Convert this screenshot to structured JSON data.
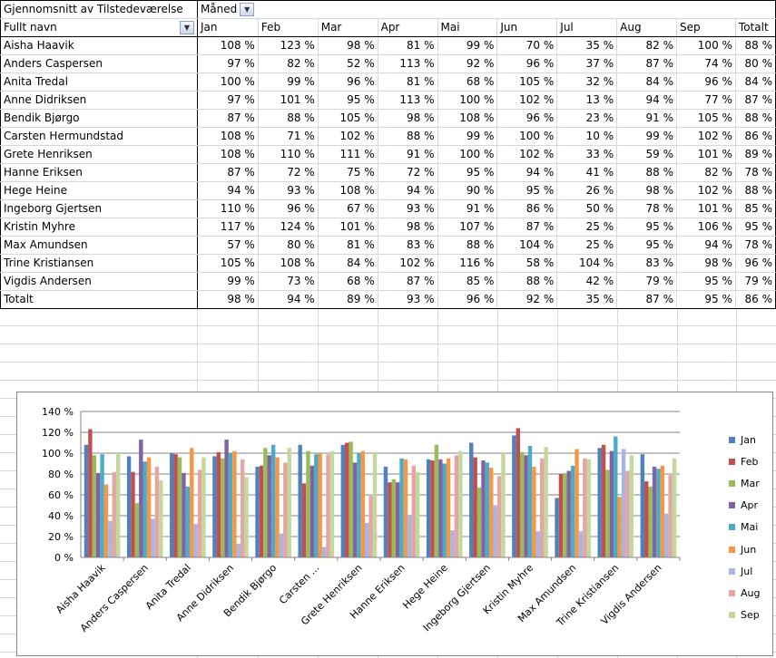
{
  "pivot": {
    "value_label": "Gjennomsnitt av Tilstedeværelse",
    "column_field": "Måned",
    "row_field": "Fullt navn",
    "months": [
      "Jan",
      "Feb",
      "Mar",
      "Apr",
      "Mai",
      "Jun",
      "Jul",
      "Aug",
      "Sep"
    ],
    "total_label": "Totalt",
    "rows": [
      {
        "name": "Aisha Haavik",
        "values": [
          "108 %",
          "123 %",
          "98 %",
          "81 %",
          "99 %",
          "70 %",
          "35 %",
          "82 %",
          "100 %"
        ],
        "total": "88 %"
      },
      {
        "name": "Anders Caspersen",
        "values": [
          "97 %",
          "82 %",
          "52 %",
          "113 %",
          "92 %",
          "96 %",
          "37 %",
          "87 %",
          "74 %"
        ],
        "total": "80 %"
      },
      {
        "name": "Anita Tredal",
        "values": [
          "100 %",
          "99 %",
          "96 %",
          "81 %",
          "68 %",
          "105 %",
          "32 %",
          "84 %",
          "96 %"
        ],
        "total": "84 %"
      },
      {
        "name": "Anne Didriksen",
        "values": [
          "97 %",
          "101 %",
          "95 %",
          "113 %",
          "100 %",
          "102 %",
          "13 %",
          "94 %",
          "77 %"
        ],
        "total": "87 %"
      },
      {
        "name": "Bendik Bjørgo",
        "values": [
          "87 %",
          "88 %",
          "105 %",
          "98 %",
          "108 %",
          "96 %",
          "23 %",
          "91 %",
          "105 %"
        ],
        "total": "88 %"
      },
      {
        "name": "Carsten Hermundstad",
        "values": [
          "108 %",
          "71 %",
          "102 %",
          "88 %",
          "99 %",
          "100 %",
          "10 %",
          "99 %",
          "102 %"
        ],
        "total": "86 %"
      },
      {
        "name": "Grete Henriksen",
        "values": [
          "108 %",
          "110 %",
          "111 %",
          "91 %",
          "100 %",
          "102 %",
          "33 %",
          "59 %",
          "101 %"
        ],
        "total": "89 %"
      },
      {
        "name": "Hanne Eriksen",
        "values": [
          "87 %",
          "72 %",
          "75 %",
          "72 %",
          "95 %",
          "94 %",
          "41 %",
          "88 %",
          "82 %"
        ],
        "total": "78 %"
      },
      {
        "name": "Hege Heine",
        "values": [
          "94 %",
          "93 %",
          "108 %",
          "94 %",
          "90 %",
          "95 %",
          "26 %",
          "98 %",
          "102 %"
        ],
        "total": "88 %"
      },
      {
        "name": "Ingeborg Gjertsen",
        "values": [
          "110 %",
          "96 %",
          "67 %",
          "93 %",
          "91 %",
          "86 %",
          "50 %",
          "78 %",
          "101 %"
        ],
        "total": "85 %"
      },
      {
        "name": "Kristin Myhre",
        "values": [
          "117 %",
          "124 %",
          "101 %",
          "98 %",
          "107 %",
          "87 %",
          "25 %",
          "95 %",
          "106 %"
        ],
        "total": "95 %"
      },
      {
        "name": "Max Amundsen",
        "values": [
          "57 %",
          "80 %",
          "81 %",
          "83 %",
          "88 %",
          "104 %",
          "25 %",
          "95 %",
          "94 %"
        ],
        "total": "78 %"
      },
      {
        "name": "Trine Kristiansen",
        "values": [
          "105 %",
          "108 %",
          "84 %",
          "102 %",
          "116 %",
          "58 %",
          "104 %",
          "83 %",
          "98 %"
        ],
        "total": "96 %"
      },
      {
        "name": "Vigdis Andersen",
        "values": [
          "99 %",
          "73 %",
          "68 %",
          "87 %",
          "85 %",
          "88 %",
          "42 %",
          "79 %",
          "95 %"
        ],
        "total": "79 %"
      }
    ],
    "grand_total": {
      "name": "Totalt",
      "values": [
        "98 %",
        "94 %",
        "89 %",
        "93 %",
        "96 %",
        "92 %",
        "35 %",
        "87 %",
        "95 %"
      ],
      "total": "86 %"
    }
  },
  "chart_data": {
    "type": "bar",
    "categories": [
      "Aisha Haavik",
      "Anders Caspersen",
      "Anita Tredal",
      "Anne Didriksen",
      "Bendik Bjørgo",
      "Carsten ...",
      "Grete Henriksen",
      "Hanne Eriksen",
      "Hege Heine",
      "Ingeborg Gjertsen",
      "Kristin Myhre",
      "Max Amundsen",
      "Trine Kristiansen",
      "Vigdis Andersen"
    ],
    "series": [
      {
        "name": "Jan",
        "color": "#4F81BD",
        "values": [
          108,
          97,
          100,
          97,
          87,
          108,
          108,
          87,
          94,
          110,
          117,
          57,
          105,
          99
        ]
      },
      {
        "name": "Feb",
        "color": "#C0504D",
        "values": [
          123,
          82,
          99,
          101,
          88,
          71,
          110,
          72,
          93,
          96,
          124,
          80,
          108,
          73
        ]
      },
      {
        "name": "Mar",
        "color": "#9BBB59",
        "values": [
          98,
          52,
          96,
          95,
          105,
          102,
          111,
          75,
          108,
          67,
          101,
          81,
          84,
          68
        ]
      },
      {
        "name": "Apr",
        "color": "#8064A2",
        "values": [
          81,
          113,
          81,
          113,
          98,
          88,
          91,
          72,
          94,
          93,
          98,
          83,
          102,
          87
        ]
      },
      {
        "name": "Mai",
        "color": "#4BACC6",
        "values": [
          99,
          92,
          68,
          100,
          108,
          99,
          100,
          95,
          90,
          91,
          107,
          88,
          116,
          85
        ]
      },
      {
        "name": "Jun",
        "color": "#F79646",
        "values": [
          70,
          96,
          105,
          102,
          96,
          100,
          102,
          94,
          95,
          86,
          87,
          104,
          58,
          88
        ]
      },
      {
        "name": "Jul",
        "color": "#A7B6E2",
        "values": [
          35,
          37,
          32,
          13,
          23,
          10,
          33,
          41,
          26,
          50,
          25,
          25,
          104,
          42
        ]
      },
      {
        "name": "Aug",
        "color": "#E4A6A4",
        "values": [
          82,
          87,
          84,
          94,
          91,
          99,
          59,
          88,
          98,
          78,
          95,
          95,
          83,
          79
        ]
      },
      {
        "name": "Sep",
        "color": "#C4D89D",
        "values": [
          100,
          74,
          96,
          77,
          105,
          102,
          101,
          82,
          102,
          101,
          106,
          94,
          98,
          95
        ]
      }
    ],
    "yticks": [
      "0 %",
      "20 %",
      "40 %",
      "60 %",
      "80 %",
      "100 %",
      "120 %",
      "140 %"
    ],
    "ylim": [
      0,
      140
    ],
    "grid": true,
    "legend": "right"
  }
}
